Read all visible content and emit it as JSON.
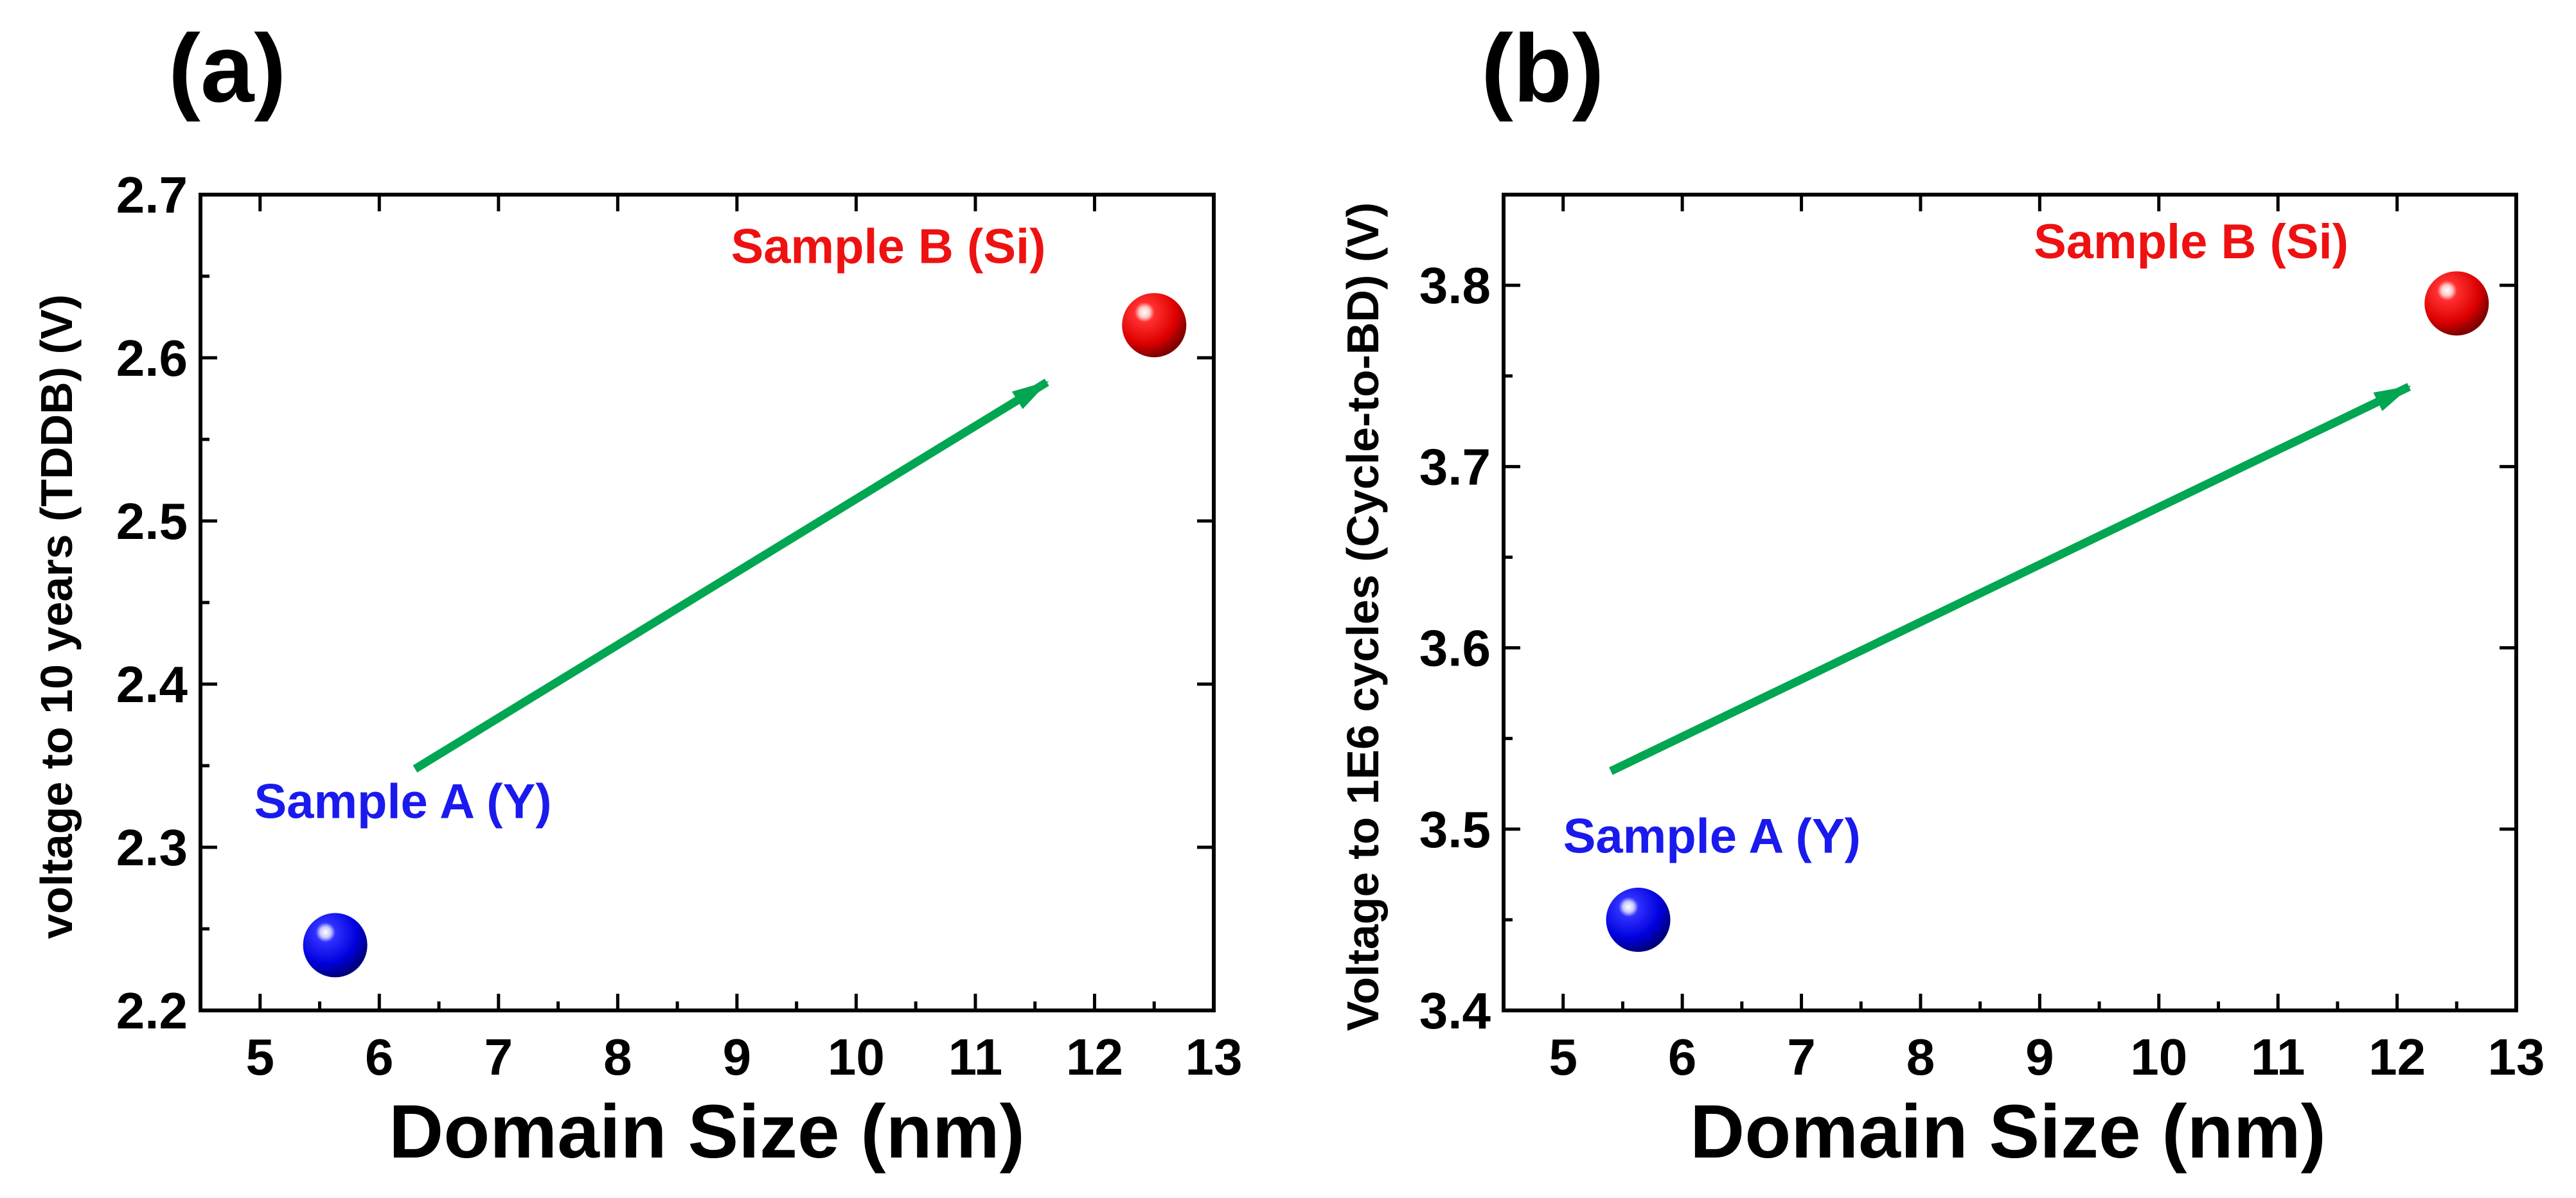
{
  "chart_data": [
    {
      "type": "scatter",
      "panel_label": "(a)",
      "xlabel": "Domain Size (nm)",
      "ylabel": "voltage to 10 years (TDDB) (V)",
      "xlim": [
        4.5,
        13
      ],
      "ylim": [
        2.2,
        2.7
      ],
      "x_ticks": [
        "5",
        "6",
        "7",
        "8",
        "9",
        "10",
        "11",
        "12",
        "13"
      ],
      "x_tick_values": [
        5,
        6,
        7,
        8,
        9,
        10,
        11,
        12,
        13
      ],
      "y_ticks": [
        "2.2",
        "2.3",
        "2.4",
        "2.5",
        "2.6",
        "2.7"
      ],
      "y_tick_values": [
        2.2,
        2.3,
        2.4,
        2.5,
        2.6,
        2.7
      ],
      "points": [
        {
          "name": "Sample A (Y)",
          "x": 5.63,
          "y": 2.24,
          "color": "#0000ee"
        },
        {
          "name": "Sample B (Si)",
          "x": 12.5,
          "y": 2.62,
          "color": "#ee0000"
        }
      ],
      "annotations": [
        {
          "text": "Sample A (Y)",
          "x": 4.95,
          "y": 2.318,
          "color": "#1a1aee"
        },
        {
          "text": "Sample B (Si)",
          "x": 8.95,
          "y": 2.658,
          "color": "#ee1111"
        }
      ],
      "arrow": {
        "from": [
          6.3,
          2.348
        ],
        "to": [
          11.6,
          2.585
        ],
        "color": "#00a651"
      }
    },
    {
      "type": "scatter",
      "panel_label": "(b)",
      "xlabel": "Domain Size (nm)",
      "ylabel": "Voltage to 1E6 cycles (Cycle-to-BD) (V)",
      "xlim": [
        4.5,
        13
      ],
      "ylim": [
        3.4,
        3.85
      ],
      "x_ticks": [
        "5",
        "6",
        "7",
        "8",
        "9",
        "10",
        "11",
        "12",
        "13"
      ],
      "x_tick_values": [
        5,
        6,
        7,
        8,
        9,
        10,
        11,
        12,
        13
      ],
      "y_ticks": [
        "3.4",
        "3.5",
        "3.6",
        "3.7",
        "3.8"
      ],
      "y_tick_values": [
        3.4,
        3.5,
        3.6,
        3.7,
        3.8
      ],
      "points": [
        {
          "name": "Sample A (Y)",
          "x": 5.63,
          "y": 3.45,
          "color": "#0000ee"
        },
        {
          "name": "Sample B (Si)",
          "x": 12.5,
          "y": 3.79,
          "color": "#ee0000"
        }
      ],
      "annotations": [
        {
          "text": "Sample A (Y)",
          "x": 5.0,
          "y": 3.487,
          "color": "#1a1aee"
        },
        {
          "text": "Sample B (Si)",
          "x": 8.95,
          "y": 3.815,
          "color": "#ee1111"
        }
      ],
      "arrow": {
        "from": [
          5.4,
          3.532
        ],
        "to": [
          12.1,
          3.744
        ],
        "color": "#00a651"
      }
    }
  ]
}
